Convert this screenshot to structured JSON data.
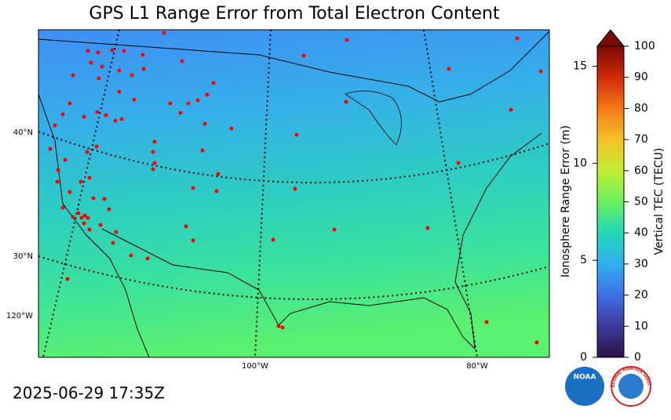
{
  "title": "GPS L1 Range Error from Total Electron Content",
  "timestamp": "2025-06-29 17:35Z",
  "map": {
    "lat_labels": [
      "40°N",
      "30°N"
    ],
    "lon_labels": [
      "120°W",
      "100°W",
      "80°W"
    ]
  },
  "colorbar": {
    "label": "Vertical TEC (TECU)",
    "lim": [
      0,
      100
    ],
    "ticks": [
      0,
      10,
      20,
      30,
      40,
      50,
      60,
      70,
      80,
      90,
      100
    ],
    "secondary": {
      "label": "Ionosphere Range Error (m)",
      "lim": [
        0,
        16.03
      ],
      "ticks": [
        0,
        5,
        10,
        15
      ]
    }
  },
  "logos": {
    "noaa": "NOAA",
    "nws": "NATIONAL WEATHER SERVICE"
  }
}
